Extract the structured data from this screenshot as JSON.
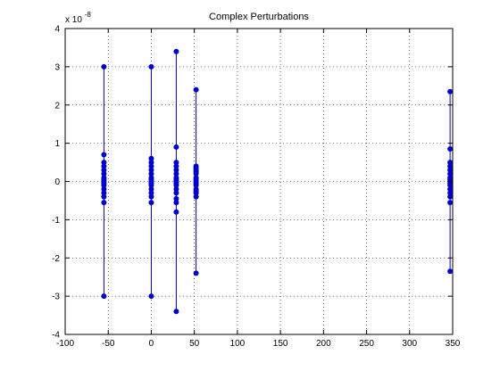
{
  "chart_data": {
    "type": "scatter",
    "title": "Complex Perturbations",
    "xlabel": "",
    "ylabel": "",
    "xlim": [
      -100,
      350
    ],
    "ylim": [
      -4,
      4
    ],
    "y_multiplier_label": "x 10",
    "y_multiplier_exponent": "-8",
    "x_ticks": [
      -100,
      -50,
      0,
      50,
      100,
      150,
      200,
      250,
      300,
      350
    ],
    "x_tick_labels": [
      "-100",
      "-50",
      "0",
      "50",
      "100",
      "150",
      "200",
      "250",
      "300",
      "350"
    ],
    "y_ticks": [
      -4,
      -3,
      -2,
      -1,
      0,
      1,
      2,
      3,
      4
    ],
    "y_tick_labels": [
      "-4",
      "-3",
      "-2",
      "-1",
      "0",
      "1",
      "2",
      "3",
      "4"
    ],
    "grid": true,
    "grid_style": "dotted",
    "legend": "none",
    "color": "#0000cc",
    "series": [
      {
        "x": [
          -55,
          -55,
          -55,
          -55,
          -55,
          -55,
          -55,
          -55,
          -55,
          -55,
          -55,
          -55,
          -55,
          -55,
          -55,
          -55
        ],
        "y": [
          3.0,
          0.7,
          0.5,
          0.4,
          0.3,
          0.2,
          0.1,
          0.05,
          0.0,
          -0.05,
          -0.1,
          -0.2,
          -0.3,
          -0.4,
          -0.55,
          -3.0
        ]
      },
      {
        "x": [
          0,
          0,
          0,
          0,
          0,
          0,
          0,
          0,
          0,
          0,
          0,
          0,
          0,
          0,
          0,
          0
        ],
        "y": [
          3.0,
          0.6,
          0.5,
          0.4,
          0.3,
          0.2,
          0.1,
          0.05,
          0.0,
          -0.05,
          -0.1,
          -0.2,
          -0.3,
          -0.4,
          -0.55,
          -3.0
        ]
      },
      {
        "x": [
          29,
          29,
          29,
          29,
          29,
          29,
          29,
          29,
          29,
          29,
          29,
          29,
          29,
          29,
          29,
          29,
          29
        ],
        "y": [
          3.4,
          0.9,
          0.5,
          0.4,
          0.3,
          0.2,
          0.1,
          0.05,
          0.0,
          -0.05,
          -0.1,
          -0.2,
          -0.3,
          -0.45,
          -0.55,
          -0.8,
          -3.4
        ]
      },
      {
        "x": [
          52,
          52,
          52,
          52,
          52,
          52,
          52,
          52,
          52,
          52,
          52,
          52,
          52,
          52,
          52,
          52
        ],
        "y": [
          2.4,
          0.4,
          0.35,
          0.3,
          0.25,
          0.2,
          0.1,
          0.05,
          0.0,
          -0.05,
          -0.1,
          -0.2,
          -0.25,
          -0.3,
          -0.4,
          -2.4
        ]
      },
      {
        "x": [
          347,
          347,
          347,
          347,
          347,
          347,
          347,
          347,
          347,
          347,
          347,
          347,
          347,
          347,
          347,
          347
        ],
        "y": [
          2.35,
          0.85,
          0.5,
          0.4,
          0.3,
          0.2,
          0.1,
          0.05,
          0.0,
          -0.05,
          -0.1,
          -0.2,
          -0.3,
          -0.4,
          -0.55,
          -2.35
        ]
      }
    ]
  }
}
